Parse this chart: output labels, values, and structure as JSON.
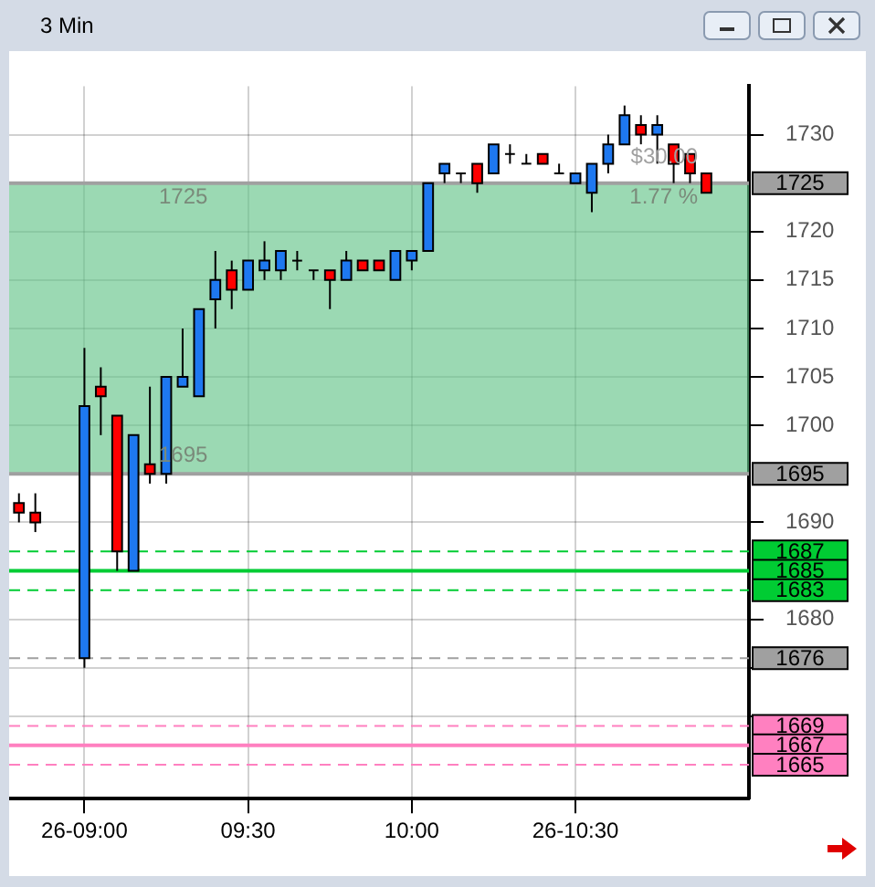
{
  "chart_data": {
    "type": "candlestick",
    "title": "3 Min",
    "x": [
      8.8,
      8.85,
      9,
      9.05,
      9.1,
      9.15,
      9.2,
      9.25,
      9.3,
      9.35,
      9.4,
      9.45,
      9.5,
      9.55,
      9.6,
      9.65,
      9.7,
      9.75,
      9.8,
      9.85,
      9.9,
      9.95,
      10,
      10.05,
      10.1,
      10.15,
      10.2,
      10.25,
      10.3,
      10.35,
      10.4,
      10.45,
      10.5,
      10.55,
      10.6,
      10.65,
      10.7,
      10.75,
      10.8,
      10.85,
      10.9
    ],
    "ohlc": [
      [
        1692,
        1693,
        1690,
        1691
      ],
      [
        1691,
        1693,
        1689,
        1690
      ],
      [
        1676,
        1708,
        1675,
        1702
      ],
      [
        1704,
        1706,
        1699,
        1703
      ],
      [
        1701,
        1701,
        1685,
        1687
      ],
      [
        1685,
        1699,
        1685,
        1699
      ],
      [
        1696,
        1704,
        1694,
        1695
      ],
      [
        1695,
        1705,
        1694,
        1705
      ],
      [
        1704,
        1710,
        1704,
        1705
      ],
      [
        1703,
        1712,
        1703,
        1712
      ],
      [
        1713,
        1718,
        1710,
        1715
      ],
      [
        1716,
        1717,
        1712,
        1714
      ],
      [
        1714,
        1717,
        1714,
        1717
      ],
      [
        1716,
        1719,
        1715,
        1717
      ],
      [
        1716,
        1718,
        1715,
        1718
      ],
      [
        1717,
        1718,
        1716,
        1717
      ],
      [
        1716,
        1716,
        1715,
        1716
      ],
      [
        1716,
        1716,
        1712,
        1715
      ],
      [
        1715,
        1718,
        1715,
        1717
      ],
      [
        1717,
        1717,
        1716,
        1716
      ],
      [
        1717,
        1717,
        1716,
        1716
      ],
      [
        1715,
        1718,
        1715,
        1718
      ],
      [
        1717,
        1718,
        1716,
        1718
      ],
      [
        1718,
        1725,
        1718,
        1725
      ],
      [
        1726,
        1727,
        1725,
        1727
      ],
      [
        1726,
        1726,
        1725,
        1726
      ],
      [
        1727,
        1727,
        1724,
        1725
      ],
      [
        1726,
        1729,
        1726,
        1729
      ],
      [
        1728,
        1729,
        1727,
        1728
      ],
      [
        1727,
        1728,
        1727,
        1727
      ],
      [
        1728,
        1728,
        1727,
        1727
      ],
      [
        1726,
        1727,
        1726,
        1726
      ],
      [
        1725,
        1726,
        1725,
        1726
      ],
      [
        1724,
        1727,
        1722,
        1727
      ],
      [
        1727,
        1730,
        1726,
        1729
      ],
      [
        1729,
        1733,
        1729,
        1732
      ],
      [
        1731,
        1732,
        1729,
        1730
      ],
      [
        1730,
        1732,
        1727,
        1731
      ],
      [
        1729,
        1729,
        1725,
        1727
      ],
      [
        1728,
        1728,
        1725,
        1726
      ],
      [
        1726,
        1726,
        1724,
        1724
      ]
    ],
    "colors": [
      "#ff0000",
      "#ff0000",
      "#1e78f0",
      "#ff0000",
      "#ff0000",
      "#1e78f0",
      "#ff0000",
      "#1e78f0",
      "#1e78f0",
      "#1e78f0",
      "#1e78f0",
      "#ff0000",
      "#1e78f0",
      "#1e78f0",
      "#1e78f0",
      "#000000",
      "#000000",
      "#ff0000",
      "#1e78f0",
      "#ff0000",
      "#ff0000",
      "#1e78f0",
      "#1e78f0",
      "#1e78f0",
      "#1e78f0",
      "#000000",
      "#ff0000",
      "#1e78f0",
      "#000000",
      "#000000",
      "#ff0000",
      "#000000",
      "#1e78f0",
      "#1e78f0",
      "#1e78f0",
      "#1e78f0",
      "#ff0000",
      "#1e78f0",
      "#ff0000",
      "#ff0000",
      "#ff0000"
    ],
    "xlim": [
      8.77,
      11.03
    ],
    "xticks": [
      {
        "value": 9,
        "label": "26-09:00"
      },
      {
        "value": 9.5,
        "label": "09:30"
      },
      {
        "value": 10,
        "label": "10:00"
      },
      {
        "value": 10.5,
        "label": "26-10:30"
      }
    ],
    "ylim": [
      1661.5,
      1735
    ],
    "yticks": [
      {
        "value": 1670,
        "label": null
      },
      {
        "value": 1675,
        "label": null
      },
      1680,
      1690,
      1700,
      1705,
      1710,
      1715,
      1720,
      1730
    ],
    "grid": true,
    "bands": [
      {
        "axis": "y",
        "from": 1695,
        "to": 1725,
        "color": "#66c48a"
      }
    ],
    "ref_lines": [
      {
        "axis": "y",
        "value": 1725,
        "label": "1725",
        "color": "#a0a0a0",
        "line_style": "solid"
      },
      {
        "axis": "y",
        "value": 1695,
        "label": "1695",
        "color": "#a0a0a0",
        "line_style": "solid"
      },
      {
        "axis": "y",
        "value": 1687,
        "label": "1687",
        "color": "#00cc33",
        "line_style": "dashed"
      },
      {
        "axis": "y",
        "value": 1685,
        "label": "1685",
        "color": "#00cc33",
        "line_style": "solid"
      },
      {
        "axis": "y",
        "value": 1683,
        "label": "1683",
        "color": "#00cc33",
        "line_style": "dashed"
      },
      {
        "axis": "y",
        "value": 1676,
        "label": "1676",
        "color": "#a0a0a0",
        "line_style": "dashed"
      },
      {
        "axis": "y",
        "value": 1669,
        "label": "1669",
        "color": "#ff80c0",
        "line_style": "dashed"
      },
      {
        "axis": "y",
        "value": 1667,
        "label": "1667",
        "color": "#ff80c0",
        "line_style": "solid"
      },
      {
        "axis": "y",
        "value": 1665,
        "label": "1665",
        "color": "#ff80c0",
        "line_style": "dashed"
      }
    ],
    "annotations": [
      "1725",
      "1695",
      "$30.00",
      "1.77 %"
    ]
  }
}
